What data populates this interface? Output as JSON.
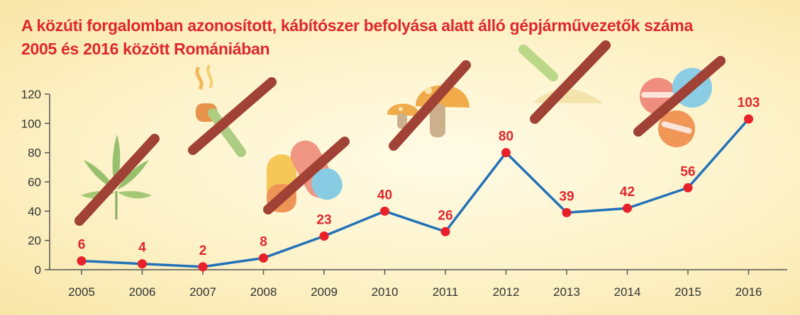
{
  "title_line1": "A közúti forgalomban azonosított, kábítószer befolyása alatt álló gépjárművezetők száma",
  "title_line2": "2005 és 2016 között Romániában",
  "colors": {
    "title": "#e0272c",
    "line": "#2272b8",
    "marker": "#e8202a",
    "axis": "#555555",
    "data_label": "#e0272c"
  },
  "decorations": [
    "cannabis-leaf-icon",
    "smoking-joint-icon",
    "capsule-pills-icon",
    "mushroom-icon",
    "powder-line-icon",
    "tablets-icon"
  ],
  "chart_data": {
    "type": "line",
    "categories": [
      "2005",
      "2006",
      "2007",
      "2008",
      "2009",
      "2010",
      "2011",
      "2012",
      "2013",
      "2014",
      "2015",
      "2016"
    ],
    "series": [
      {
        "values": [
          6,
          4,
          2,
          8,
          23,
          40,
          26,
          80,
          39,
          42,
          56,
          103
        ]
      }
    ],
    "data_labels": [
      "6",
      "4",
      "2",
      "8",
      "23",
      "40",
      "26",
      "80",
      "39",
      "42",
      "56",
      "103"
    ],
    "y_ticks": [
      "0",
      "20",
      "40",
      "60",
      "80",
      "100",
      "120"
    ],
    "ylim": [
      0,
      120
    ],
    "grid": false,
    "legend": "none"
  }
}
